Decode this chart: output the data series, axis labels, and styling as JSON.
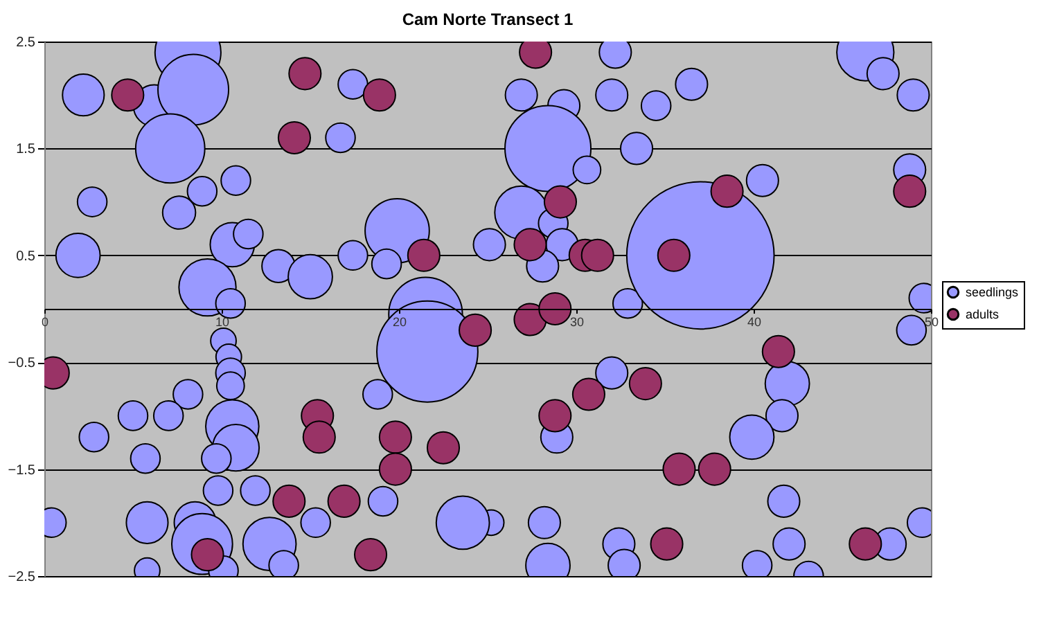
{
  "chart_data": {
    "type": "bubble",
    "title": "Cam Norte Transect 1",
    "xlim": [
      0,
      50
    ],
    "xticks": [
      0,
      10,
      20,
      30,
      40,
      50
    ],
    "ylim": [
      -2.5,
      2.5
    ],
    "yticks": [
      -2.5,
      -1.5,
      -0.5,
      0.5,
      1.5,
      2.5
    ],
    "grid": "y",
    "legend": "right",
    "series": [
      {
        "name": "seedlings",
        "color": "#9999ff",
        "x": [
          2.2,
          2.7,
          1.9,
          8.1,
          6.2,
          8.4,
          7.1,
          8.9,
          10.8,
          7.6,
          10.6,
          11.5,
          13.2,
          15.0,
          9.2,
          10.5,
          16.7,
          17.4,
          17.4,
          19.9,
          19.3,
          21.5,
          21.6,
          25.1,
          26.9,
          29.3,
          28.4,
          30.6,
          26.9,
          28.7,
          29.2,
          28.1,
          32.2,
          32.0,
          34.5,
          33.4,
          32.9,
          37.0,
          36.5,
          46.3,
          47.3,
          49.0,
          40.5,
          48.8,
          49.6,
          48.9,
          41.9,
          41.6,
          39.9,
          41.7,
          42.0,
          40.2,
          43.1,
          47.7,
          49.5,
          32.0,
          28.9,
          19.1,
          25.2,
          23.6,
          28.2,
          28.4,
          32.4,
          32.7,
          18.8,
          10.1,
          10.4,
          10.5,
          10.5,
          8.1,
          5.0,
          7.0,
          2.8,
          5.7,
          10.6,
          10.8,
          9.7,
          9.8,
          11.9,
          0.4,
          5.8,
          8.5,
          8.9,
          12.7,
          15.3,
          5.8,
          10.1,
          13.5
        ],
        "values": [
          2.0,
          1.0,
          0.5,
          2.4,
          1.9,
          2.05,
          1.5,
          1.1,
          1.2,
          0.9,
          0.6,
          0.7,
          0.4,
          0.3,
          0.2,
          0.05,
          1.6,
          2.1,
          0.5,
          0.73,
          0.42,
          -0.05,
          -0.4,
          0.6,
          2.0,
          1.9,
          1.5,
          1.3,
          0.9,
          0.8,
          0.6,
          0.4,
          2.4,
          2.0,
          1.9,
          1.5,
          0.05,
          0.5,
          2.1,
          2.4,
          2.2,
          2.0,
          1.2,
          1.3,
          0.1,
          -0.2,
          -0.7,
          -1.0,
          -1.2,
          -1.8,
          -2.2,
          -2.4,
          -2.5,
          -2.2,
          -2.0,
          -0.6,
          -1.2,
          -1.8,
          -2.0,
          -2.0,
          -2.0,
          -2.4,
          -2.2,
          -2.4,
          -0.8,
          -0.3,
          -0.45,
          -0.6,
          -0.72,
          -0.8,
          -1.0,
          -1.0,
          -1.2,
          -1.4,
          -1.1,
          -1.3,
          -1.4,
          -1.7,
          -1.7,
          -2.0,
          -2.0,
          -2.0,
          -2.2,
          -2.2,
          -2.0,
          -2.45,
          -2.45,
          -2.4
        ],
        "sizes": [
          0.08,
          0.04,
          0.09,
          0.2,
          0.08,
          0.23,
          0.22,
          0.04,
          0.04,
          0.05,
          0.09,
          0.04,
          0.05,
          0.09,
          0.15,
          0.04,
          0.04,
          0.04,
          0.04,
          0.19,
          0.04,
          0.25,
          0.47,
          0.047,
          0.047,
          0.047,
          0.34,
          0.035,
          0.13,
          0.04,
          0.047,
          0.047,
          0.047,
          0.047,
          0.04,
          0.047,
          0.04,
          1.0,
          0.047,
          0.15,
          0.047,
          0.047,
          0.047,
          0.047,
          0.04,
          0.04,
          0.09,
          0.047,
          0.09,
          0.047,
          0.047,
          0.04,
          0.04,
          0.047,
          0.04,
          0.047,
          0.047,
          0.04,
          0.03,
          0.13,
          0.047,
          0.09,
          0.047,
          0.047,
          0.04,
          0.03,
          0.03,
          0.04,
          0.035,
          0.04,
          0.04,
          0.04,
          0.04,
          0.04,
          0.13,
          0.1,
          0.04,
          0.04,
          0.04,
          0.04,
          0.08,
          0.08,
          0.17,
          0.13,
          0.04,
          0.03,
          0.04,
          0.04
        ]
      },
      {
        "name": "adults",
        "color": "#993366",
        "x": [
          4.7,
          14.7,
          14.1,
          18.9,
          27.7,
          29.1,
          38.5,
          48.8,
          21.4,
          27.4,
          30.5,
          31.2,
          35.5,
          0.5,
          24.3,
          27.4,
          28.8,
          41.4,
          33.9,
          30.7,
          28.8,
          15.4,
          15.5,
          19.8,
          22.5,
          19.8,
          35.8,
          37.8,
          13.8,
          16.9,
          35.1,
          46.3,
          9.2,
          18.4
        ],
        "values": [
          2.0,
          2.2,
          1.6,
          2.0,
          2.4,
          1.0,
          1.1,
          1.1,
          0.5,
          0.6,
          0.5,
          0.5,
          0.5,
          -0.6,
          -0.2,
          -0.1,
          0.0,
          -0.4,
          -0.7,
          -0.8,
          -1.0,
          -1.0,
          -1.2,
          -1.2,
          -1.3,
          -1.5,
          -1.5,
          -1.5,
          -1.8,
          -1.8,
          -2.2,
          -2.2,
          -2.3,
          -2.3
        ],
        "sizes": [
          0.047,
          0.047,
          0.047,
          0.047,
          0.047,
          0.047,
          0.047,
          0.047,
          0.047,
          0.047,
          0.047,
          0.047,
          0.047,
          0.047,
          0.047,
          0.047,
          0.047,
          0.047,
          0.047,
          0.047,
          0.047,
          0.047,
          0.047,
          0.047,
          0.047,
          0.047,
          0.047,
          0.047,
          0.047,
          0.047,
          0.047,
          0.047,
          0.047,
          0.047
        ]
      }
    ]
  }
}
